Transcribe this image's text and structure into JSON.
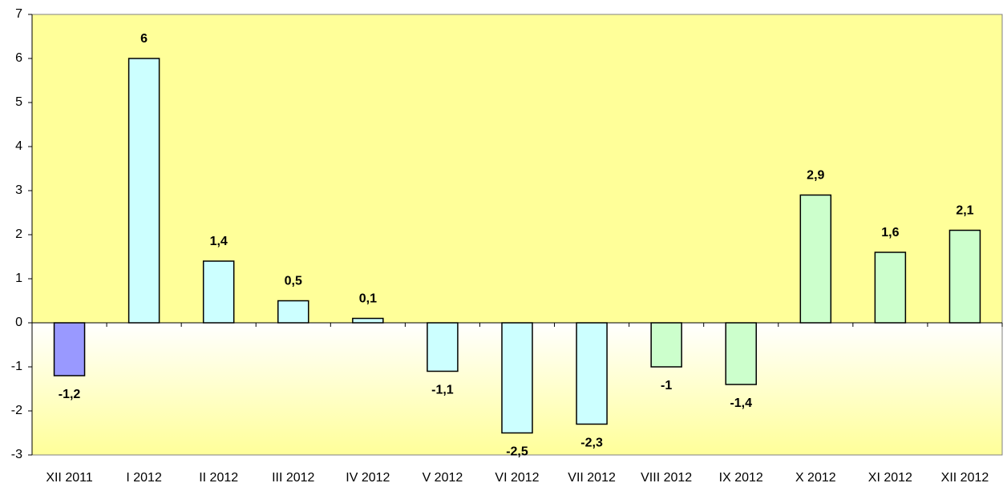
{
  "chart_data": {
    "type": "bar",
    "categories": [
      "XII 2011",
      "I 2012",
      "II 2012",
      "III 2012",
      "IV 2012",
      "V 2012",
      "VI 2012",
      "VII 2012",
      "VIII 2012",
      "IX 2012",
      "X 2012",
      "XI 2012",
      "XII 2012"
    ],
    "values": [
      -1.2,
      6,
      1.4,
      0.5,
      0.1,
      -1.1,
      -2.5,
      -2.3,
      -1,
      -1.4,
      2.9,
      1.6,
      2.1
    ],
    "value_labels": [
      "-1,2",
      "6",
      "1,4",
      "0,5",
      "0,1",
      "-1,1",
      "-2,5",
      "-2,3",
      "-1",
      "-1,4",
      "2,9",
      "1,6",
      "2,1"
    ],
    "colors": [
      "#9999ff",
      "#ccffff",
      "#ccffff",
      "#ccffff",
      "#ccffff",
      "#ccffff",
      "#ccffff",
      "#ccffff",
      "#ccffcc",
      "#ccffcc",
      "#ccffcc",
      "#ccffcc",
      "#ccffcc"
    ],
    "ylim": [
      -3,
      7
    ],
    "yticks": [
      -3,
      -2,
      -1,
      0,
      1,
      2,
      3,
      4,
      5,
      6,
      7
    ]
  }
}
